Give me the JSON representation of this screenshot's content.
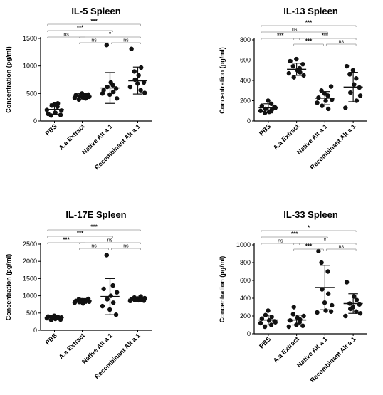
{
  "chart_data": [
    {
      "type": "scatter",
      "title": "IL-5 Spleen",
      "ylabel": "Concentration (pg/ml)",
      "categories": [
        "PBS",
        "A.a Extract",
        "Native Alt a 1",
        "Recombinant Alt a 1"
      ],
      "yticks": [
        "0",
        "500",
        "1000",
        "1500"
      ],
      "ylim": [
        0,
        1500
      ],
      "points": [
        [
          200,
          130,
          100,
          280,
          300,
          150,
          260,
          320,
          110,
          190
        ],
        [
          420,
          470,
          390,
          450,
          500,
          430,
          460,
          410,
          480,
          440
        ],
        [
          500,
          560,
          1380,
          620,
          480,
          700,
          650,
          530,
          590,
          410
        ],
        [
          620,
          1310,
          900,
          750,
          680,
          830,
          560,
          970,
          700,
          510
        ]
      ],
      "stats": [
        {
          "mean": 210,
          "sd_low": 120,
          "sd_high": 310
        },
        {
          "mean": 450,
          "sd_low": 400,
          "sd_high": 500
        },
        {
          "mean": 600,
          "sd_low": 320,
          "sd_high": 880
        },
        {
          "mean": 730,
          "sd_low": 490,
          "sd_high": 980
        }
      ],
      "comparisons": [
        {
          "from": 0,
          "to": 3,
          "label": "***"
        },
        {
          "from": 0,
          "to": 2,
          "label": "***"
        },
        {
          "from": 0,
          "to": 1,
          "label": "ns"
        },
        {
          "from": 1,
          "to": 3,
          "label": "*"
        },
        {
          "from": 1,
          "to": 2,
          "label": "ns"
        },
        {
          "from": 2,
          "to": 3,
          "label": "ns"
        }
      ]
    },
    {
      "type": "scatter",
      "title": "IL-13 Spleen",
      "ylabel": "Concentration (pg/ml)",
      "categories": [
        "PBS",
        "A.a Extract",
        "Native Alt a 1",
        "Recombinant Alt a 1"
      ],
      "yticks": [
        "0",
        "200",
        "400",
        "600",
        "800"
      ],
      "ylim": [
        0,
        800
      ],
      "points": [
        [
          100,
          150,
          80,
          120,
          200,
          90,
          170,
          110,
          140,
          130
        ],
        [
          470,
          590,
          540,
          430,
          610,
          500,
          520,
          480,
          560,
          450
        ],
        [
          180,
          230,
          300,
          150,
          270,
          200,
          250,
          120,
          340,
          210
        ],
        [
          130,
          540,
          460,
          280,
          500,
          360,
          420,
          200,
          330,
          250
        ]
      ],
      "stats": [
        {
          "mean": 130,
          "sd_low": 80,
          "sd_high": 170
        },
        {
          "mean": 510,
          "sd_low": 450,
          "sd_high": 570
        },
        {
          "mean": 225,
          "sd_low": 160,
          "sd_high": 290
        },
        {
          "mean": 335,
          "sd_low": 190,
          "sd_high": 480
        }
      ],
      "comparisons": [
        {
          "from": 0,
          "to": 3,
          "label": "***"
        },
        {
          "from": 0,
          "to": 2,
          "label": "ns"
        },
        {
          "from": 0,
          "to": 1,
          "label": "***"
        },
        {
          "from": 1,
          "to": 3,
          "label": "***"
        },
        {
          "from": 1,
          "to": 2,
          "label": "***"
        },
        {
          "from": 2,
          "to": 3,
          "label": "ns"
        }
      ]
    },
    {
      "type": "scatter",
      "title": "IL-17E Spleen",
      "ylabel": "Concentration (pg/ml)",
      "categories": [
        "PBS",
        "A.a Extract",
        "Native Alt a 1",
        "Recombinant Alt a 1"
      ],
      "yticks": [
        "0",
        "500",
        "1000",
        "1500",
        "2000",
        "2500"
      ],
      "ylim": [
        0,
        2500
      ],
      "points": [
        [
          350,
          400,
          300,
          380,
          420,
          330,
          360,
          390,
          310,
          370
        ],
        [
          800,
          850,
          900,
          820,
          870,
          780,
          860,
          840,
          910,
          830
        ],
        [
          700,
          1200,
          2180,
          900,
          600,
          1000,
          1300,
          800,
          450,
          1100
        ],
        [
          850,
          900,
          950,
          880,
          920,
          870,
          980,
          890,
          860,
          930
        ]
      ],
      "stats": [
        {
          "mean": 370,
          "sd_low": 310,
          "sd_high": 430
        },
        {
          "mean": 850,
          "sd_low": 780,
          "sd_high": 920
        },
        {
          "mean": 980,
          "sd_low": 450,
          "sd_high": 1500
        },
        {
          "mean": 900,
          "sd_low": 840,
          "sd_high": 960
        }
      ],
      "comparisons": [
        {
          "from": 0,
          "to": 3,
          "label": "***"
        },
        {
          "from": 0,
          "to": 2,
          "label": "***"
        },
        {
          "from": 0,
          "to": 1,
          "label": "***"
        },
        {
          "from": 1,
          "to": 3,
          "label": "ns"
        },
        {
          "from": 1,
          "to": 2,
          "label": "ns"
        },
        {
          "from": 2,
          "to": 3,
          "label": "ns"
        }
      ]
    },
    {
      "type": "scatter",
      "title": "IL-33 Spleen",
      "ylabel": "Concentration (pg/ml)",
      "categories": [
        "PBS",
        "A.a Extract",
        "Native Alt a 1",
        "Recombinant Alt a 1"
      ],
      "yticks": [
        "0",
        "200",
        "400",
        "600",
        "800",
        "1000"
      ],
      "ylim": [
        0,
        1000
      ],
      "points": [
        [
          120,
          170,
          80,
          210,
          260,
          150,
          100,
          190,
          140,
          130
        ],
        [
          80,
          150,
          220,
          300,
          100,
          180,
          130,
          160,
          90,
          200
        ],
        [
          240,
          930,
          800,
          500,
          350,
          260,
          700,
          450,
          250,
          320
        ],
        [
          200,
          580,
          340,
          280,
          300,
          420,
          250,
          380,
          330,
          230
        ]
      ],
      "stats": [
        {
          "mean": 155,
          "sd_low": 100,
          "sd_high": 210
        },
        {
          "mean": 155,
          "sd_low": 100,
          "sd_high": 210
        },
        {
          "mean": 520,
          "sd_low": 270,
          "sd_high": 770
        },
        {
          "mean": 340,
          "sd_low": 230,
          "sd_high": 450
        }
      ],
      "comparisons": [
        {
          "from": 0,
          "to": 3,
          "label": "*"
        },
        {
          "from": 0,
          "to": 2,
          "label": "***"
        },
        {
          "from": 0,
          "to": 1,
          "label": "ns"
        },
        {
          "from": 1,
          "to": 3,
          "label": "*"
        },
        {
          "from": 1,
          "to": 2,
          "label": "***"
        },
        {
          "from": 2,
          "to": 3,
          "label": "ns"
        }
      ]
    }
  ]
}
